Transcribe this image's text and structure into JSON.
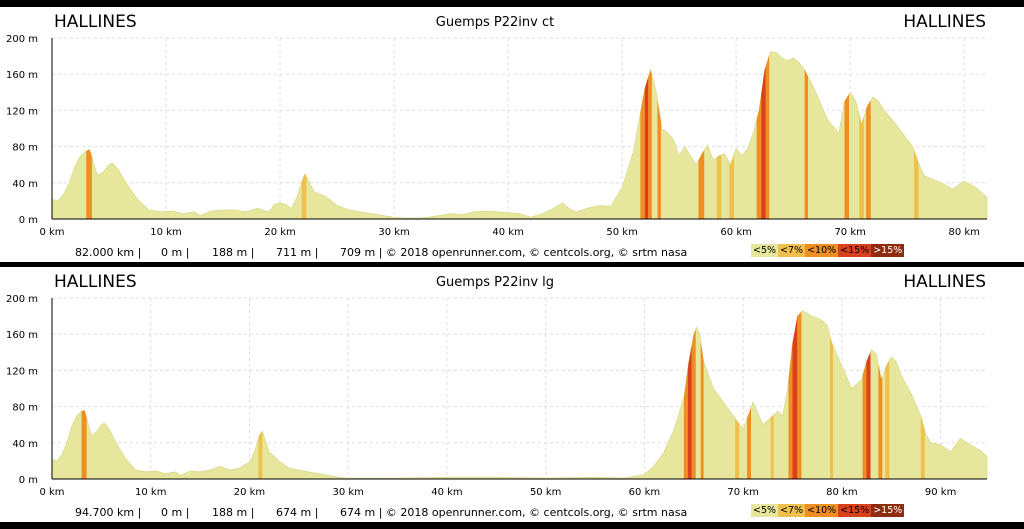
{
  "colors": {
    "lt5": "#e6e69c",
    "lt7": "#efc04b",
    "lt10": "#ef8e22",
    "lt15": "#d9411c",
    "gt15": "#8e2c10"
  },
  "chart_data": [
    {
      "type": "area",
      "title": "Guemps P22inv ct",
      "start_label": "HALLINES",
      "end_label": "HALLINES",
      "ylim": [
        0,
        200
      ],
      "xlim": [
        0,
        82
      ],
      "x_ticks": [
        0,
        10,
        20,
        30,
        40,
        50,
        60,
        70,
        80
      ],
      "y_ticks": [
        0,
        40,
        80,
        120,
        160,
        200
      ],
      "x_tick_labels": [
        "0 km",
        "10 km",
        "20 km",
        "30 km",
        "40 km",
        "50 km",
        "60 km",
        "70 km",
        "80 km"
      ],
      "y_tick_labels": [
        "0 m",
        "40 m",
        "80 m",
        "120 m",
        "160 m",
        "200 m"
      ],
      "grid": true,
      "stats": [
        "82.000 km |",
        "0 m |",
        "188 m |",
        "711 m |",
        "709 m | © 2018 openrunner.com, © centcols.org, © srtm nasa"
      ],
      "legend": [
        "<5%",
        "<7%",
        "<10%",
        "<15%",
        ">15%"
      ],
      "profile": [
        [
          0,
          22
        ],
        [
          0.5,
          20
        ],
        [
          1,
          27
        ],
        [
          1.5,
          40
        ],
        [
          2,
          58
        ],
        [
          2.5,
          70
        ],
        [
          3,
          75
        ],
        [
          3.3,
          77
        ],
        [
          3.7,
          60
        ],
        [
          4,
          48
        ],
        [
          4.5,
          52
        ],
        [
          5,
          60
        ],
        [
          5.3,
          62
        ],
        [
          5.8,
          55
        ],
        [
          6.5,
          40
        ],
        [
          7.5,
          22
        ],
        [
          8.5,
          10
        ],
        [
          9.5,
          8
        ],
        [
          10.5,
          9
        ],
        [
          11.5,
          6
        ],
        [
          12.5,
          8
        ],
        [
          13,
          4
        ],
        [
          14,
          9
        ],
        [
          15,
          10
        ],
        [
          16,
          10
        ],
        [
          17,
          8
        ],
        [
          18,
          12
        ],
        [
          19,
          8
        ],
        [
          19.5,
          16
        ],
        [
          20,
          18
        ],
        [
          20.5,
          16
        ],
        [
          21,
          12
        ],
        [
          21.5,
          25
        ],
        [
          22,
          45
        ],
        [
          22.2,
          50
        ],
        [
          22.6,
          40
        ],
        [
          23,
          30
        ],
        [
          24,
          25
        ],
        [
          25,
          15
        ],
        [
          26,
          10
        ],
        [
          27,
          8
        ],
        [
          28,
          6
        ],
        [
          29,
          4
        ],
        [
          30,
          2
        ],
        [
          31,
          1
        ],
        [
          32,
          1
        ],
        [
          33,
          2
        ],
        [
          34,
          4
        ],
        [
          35,
          6
        ],
        [
          36,
          5
        ],
        [
          37,
          8
        ],
        [
          38,
          9
        ],
        [
          39,
          8
        ],
        [
          40,
          7
        ],
        [
          41,
          6
        ],
        [
          42,
          2
        ],
        [
          43,
          6
        ],
        [
          44,
          12
        ],
        [
          44.8,
          18
        ],
        [
          45.5,
          10
        ],
        [
          46,
          8
        ],
        [
          47,
          12
        ],
        [
          48,
          15
        ],
        [
          49,
          14
        ],
        [
          50,
          35
        ],
        [
          50.5,
          55
        ],
        [
          51,
          75
        ],
        [
          51.5,
          110
        ],
        [
          52,
          145
        ],
        [
          52.5,
          165
        ],
        [
          53,
          140
        ],
        [
          53.5,
          100
        ],
        [
          54,
          95
        ],
        [
          54.5,
          88
        ],
        [
          55,
          70
        ],
        [
          55.5,
          80
        ],
        [
          56,
          70
        ],
        [
          56.5,
          60
        ],
        [
          57,
          72
        ],
        [
          57.5,
          82
        ],
        [
          58,
          65
        ],
        [
          58.5,
          70
        ],
        [
          59,
          72
        ],
        [
          59.5,
          60
        ],
        [
          60,
          78
        ],
        [
          60.5,
          70
        ],
        [
          61,
          78
        ],
        [
          61.5,
          95
        ],
        [
          62,
          120
        ],
        [
          62.5,
          165
        ],
        [
          63,
          185
        ],
        [
          63.5,
          184
        ],
        [
          64,
          178
        ],
        [
          64.5,
          175
        ],
        [
          65,
          178
        ],
        [
          65.5,
          173
        ],
        [
          66,
          165
        ],
        [
          67,
          140
        ],
        [
          68,
          110
        ],
        [
          69,
          95
        ],
        [
          69.5,
          130
        ],
        [
          70,
          140
        ],
        [
          70.5,
          130
        ],
        [
          71,
          105
        ],
        [
          71.5,
          125
        ],
        [
          72,
          135
        ],
        [
          72.5,
          130
        ],
        [
          73,
          120
        ],
        [
          74,
          105
        ],
        [
          75,
          88
        ],
        [
          75.5,
          80
        ],
        [
          76,
          62
        ],
        [
          76.5,
          48
        ],
        [
          77,
          45
        ],
        [
          78,
          40
        ],
        [
          79,
          33
        ],
        [
          80,
          42
        ],
        [
          81,
          35
        ],
        [
          82,
          24
        ]
      ],
      "steep_segments": [
        [
          3.0,
          3.5,
          "lt10"
        ],
        [
          21.9,
          22.3,
          "lt7"
        ],
        [
          51.6,
          52.0,
          "lt10"
        ],
        [
          52.0,
          52.3,
          "lt15"
        ],
        [
          52.3,
          52.6,
          "lt10"
        ],
        [
          53.1,
          53.4,
          "lt10"
        ],
        [
          56.7,
          57.2,
          "lt10"
        ],
        [
          58.3,
          58.7,
          "lt7"
        ],
        [
          59.4,
          59.8,
          "lt7"
        ],
        [
          61.8,
          62.2,
          "lt10"
        ],
        [
          62.2,
          62.6,
          "lt15"
        ],
        [
          62.6,
          62.9,
          "lt10"
        ],
        [
          66.0,
          66.3,
          "lt10"
        ],
        [
          69.5,
          69.9,
          "lt10"
        ],
        [
          70.8,
          71.2,
          "lt7"
        ],
        [
          71.4,
          71.8,
          "lt10"
        ],
        [
          75.6,
          76.0,
          "lt7"
        ]
      ]
    },
    {
      "type": "area",
      "title": "Guemps P22inv lg",
      "start_label": "HALLINES",
      "end_label": "HALLINES",
      "ylim": [
        0,
        200
      ],
      "xlim": [
        0,
        94.7
      ],
      "x_ticks": [
        0,
        10,
        20,
        30,
        40,
        50,
        60,
        70,
        80,
        90
      ],
      "y_ticks": [
        0,
        40,
        80,
        120,
        160,
        200
      ],
      "x_tick_labels": [
        "0 km",
        "10 km",
        "20 km",
        "30 km",
        "40 km",
        "50 km",
        "60 km",
        "70 km",
        "80 km",
        "90 km"
      ],
      "y_tick_labels": [
        "0 m",
        "40 m",
        "80 m",
        "120 m",
        "160 m",
        "200 m"
      ],
      "grid": true,
      "stats": [
        "94.700 km |",
        "0 m |",
        "188 m |",
        "674 m |",
        "674 m | © 2018 openrunner.com, © centcols.org, © srtm nasa"
      ],
      "legend": [
        "<5%",
        "<7%",
        "<10%",
        "<15%",
        ">15%"
      ],
      "profile": [
        [
          0,
          22
        ],
        [
          0.5,
          20
        ],
        [
          1,
          27
        ],
        [
          1.5,
          40
        ],
        [
          2,
          58
        ],
        [
          2.5,
          70
        ],
        [
          3,
          75
        ],
        [
          3.3,
          76
        ],
        [
          3.7,
          60
        ],
        [
          4,
          48
        ],
        [
          4.5,
          52
        ],
        [
          5,
          60
        ],
        [
          5.3,
          62
        ],
        [
          5.8,
          55
        ],
        [
          6.5,
          40
        ],
        [
          7.5,
          22
        ],
        [
          8.5,
          10
        ],
        [
          9.5,
          8
        ],
        [
          10.5,
          9
        ],
        [
          11.5,
          6
        ],
        [
          12.5,
          8
        ],
        [
          13,
          4
        ],
        [
          14,
          9
        ],
        [
          15,
          8
        ],
        [
          16,
          10
        ],
        [
          17,
          14
        ],
        [
          18,
          10
        ],
        [
          19,
          12
        ],
        [
          19.5,
          16
        ],
        [
          20,
          18
        ],
        [
          20.5,
          30
        ],
        [
          21,
          48
        ],
        [
          21.3,
          53
        ],
        [
          21.7,
          40
        ],
        [
          22,
          30
        ],
        [
          23,
          20
        ],
        [
          24,
          12
        ],
        [
          25,
          10
        ],
        [
          26,
          8
        ],
        [
          27,
          6
        ],
        [
          28,
          4
        ],
        [
          29,
          2
        ],
        [
          30,
          1
        ],
        [
          35,
          1
        ],
        [
          40,
          2
        ],
        [
          45,
          2
        ],
        [
          50,
          1
        ],
        [
          55,
          2
        ],
        [
          58,
          1
        ],
        [
          60,
          5
        ],
        [
          61,
          15
        ],
        [
          62,
          30
        ],
        [
          63,
          55
        ],
        [
          64,
          90
        ],
        [
          64.5,
          130
        ],
        [
          65,
          160
        ],
        [
          65.3,
          168
        ],
        [
          65.6,
          160
        ],
        [
          66,
          130
        ],
        [
          67,
          100
        ],
        [
          68,
          85
        ],
        [
          69,
          70
        ],
        [
          70,
          55
        ],
        [
          70.5,
          70
        ],
        [
          71,
          85
        ],
        [
          71.3,
          78
        ],
        [
          72,
          60
        ],
        [
          73,
          70
        ],
        [
          73.5,
          75
        ],
        [
          74,
          70
        ],
        [
          74.5,
          100
        ],
        [
          75,
          150
        ],
        [
          75.5,
          180
        ],
        [
          76,
          186
        ],
        [
          76.5,
          183
        ],
        [
          77,
          180
        ],
        [
          77.5,
          178
        ],
        [
          78,
          175
        ],
        [
          78.5,
          170
        ],
        [
          79,
          150
        ],
        [
          80,
          125
        ],
        [
          81,
          100
        ],
        [
          82,
          110
        ],
        [
          82.5,
          130
        ],
        [
          83,
          143
        ],
        [
          83.5,
          138
        ],
        [
          84,
          110
        ],
        [
          84.5,
          125
        ],
        [
          85,
          135
        ],
        [
          85.5,
          130
        ],
        [
          86,
          115
        ],
        [
          87,
          95
        ],
        [
          88,
          70
        ],
        [
          88.5,
          50
        ],
        [
          89,
          40
        ],
        [
          90,
          38
        ],
        [
          91,
          30
        ],
        [
          92,
          45
        ],
        [
          93,
          38
        ],
        [
          94,
          32
        ],
        [
          94.7,
          25
        ]
      ],
      "steep_segments": [
        [
          3.0,
          3.5,
          "lt10"
        ],
        [
          20.9,
          21.3,
          "lt7"
        ],
        [
          64.0,
          64.4,
          "lt10"
        ],
        [
          64.4,
          64.8,
          "lt15"
        ],
        [
          64.8,
          65.2,
          "lt10"
        ],
        [
          65.7,
          66.0,
          "lt10"
        ],
        [
          69.2,
          69.6,
          "lt7"
        ],
        [
          70.4,
          70.8,
          "lt10"
        ],
        [
          72.8,
          73.1,
          "lt7"
        ],
        [
          74.6,
          75.0,
          "lt10"
        ],
        [
          75.0,
          75.5,
          "lt15"
        ],
        [
          75.5,
          75.9,
          "lt10"
        ],
        [
          78.8,
          79.1,
          "lt7"
        ],
        [
          82.1,
          82.5,
          "lt10"
        ],
        [
          82.5,
          82.9,
          "lt15"
        ],
        [
          83.7,
          84.1,
          "lt10"
        ],
        [
          84.4,
          84.8,
          "lt7"
        ],
        [
          88.0,
          88.4,
          "lt7"
        ]
      ]
    }
  ]
}
